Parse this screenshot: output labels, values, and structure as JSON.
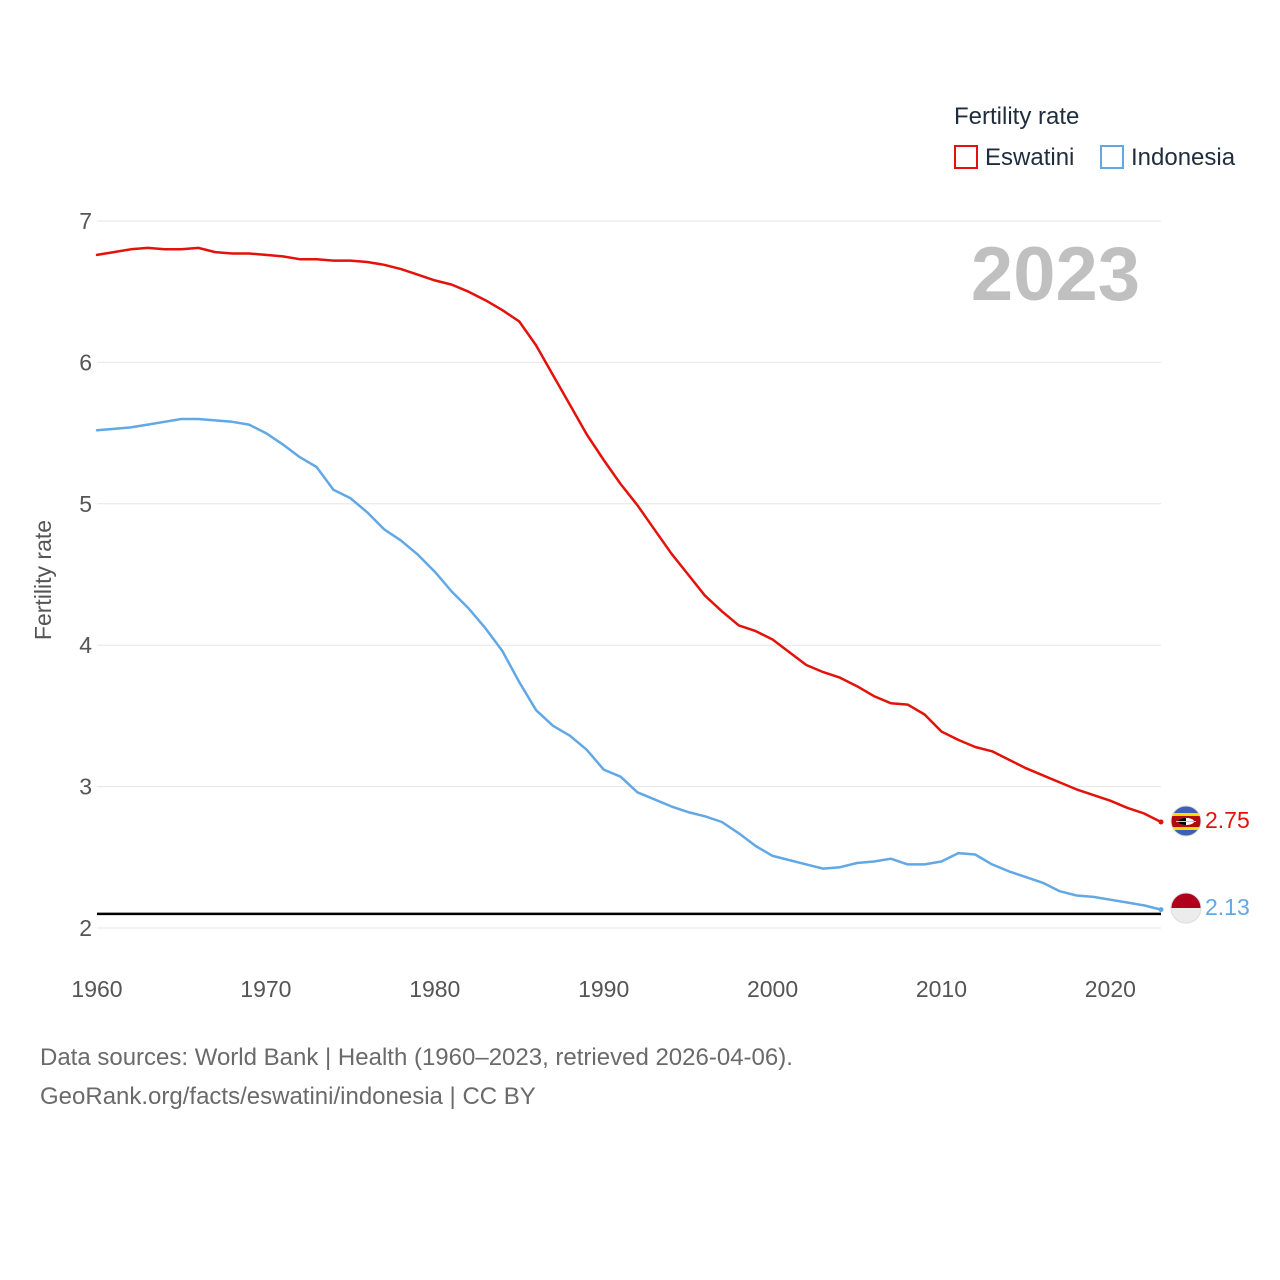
{
  "colors": {
    "eswatini": "#e3120b",
    "indonesia": "#62a8e5",
    "grid": "#e6e6e6",
    "reference_line": "#000000",
    "year_watermark": "#c0c0c0"
  },
  "year_label": "2023",
  "legend": {
    "title": "Fertility rate",
    "items": [
      {
        "label": "Eswatini"
      },
      {
        "label": "Indonesia"
      }
    ]
  },
  "end_labels": {
    "eswatini": "2.75",
    "indonesia": "2.13"
  },
  "footer": {
    "source": "Data sources: World Bank | Health (1960–2023, retrieved 2026-04-06).",
    "credit": "GeoRank.org/facts/eswatini/indonesia | CC BY"
  },
  "chart_data": {
    "type": "line",
    "title": "Fertility rate",
    "xlabel": "",
    "ylabel": "Fertility rate",
    "xlim": [
      1960,
      2023
    ],
    "ylim": [
      2,
      7
    ],
    "grid": true,
    "legend_position": "top-right",
    "xticks": [
      "1960",
      "1970",
      "1980",
      "1990",
      "2000",
      "2010",
      "2020"
    ],
    "yticks": [
      "2",
      "3",
      "4",
      "5",
      "6",
      "7"
    ],
    "reference_line": {
      "y": 2.1
    },
    "x": [
      1960,
      1961,
      1962,
      1963,
      1964,
      1965,
      1966,
      1967,
      1968,
      1969,
      1970,
      1971,
      1972,
      1973,
      1974,
      1975,
      1976,
      1977,
      1978,
      1979,
      1980,
      1981,
      1982,
      1983,
      1984,
      1985,
      1986,
      1987,
      1988,
      1989,
      1990,
      1991,
      1992,
      1993,
      1994,
      1995,
      1996,
      1997,
      1998,
      1999,
      2000,
      2001,
      2002,
      2003,
      2004,
      2005,
      2006,
      2007,
      2008,
      2009,
      2010,
      2011,
      2012,
      2013,
      2014,
      2015,
      2016,
      2017,
      2018,
      2019,
      2020,
      2021,
      2022,
      2023
    ],
    "series": [
      {
        "name": "Eswatini",
        "values": [
          6.76,
          6.78,
          6.8,
          6.81,
          6.8,
          6.8,
          6.81,
          6.78,
          6.77,
          6.77,
          6.76,
          6.75,
          6.73,
          6.73,
          6.72,
          6.72,
          6.71,
          6.69,
          6.66,
          6.62,
          6.58,
          6.55,
          6.5,
          6.44,
          6.37,
          6.29,
          6.12,
          5.91,
          5.7,
          5.49,
          5.31,
          5.14,
          4.99,
          4.82,
          4.65,
          4.5,
          4.35,
          4.24,
          4.14,
          4.1,
          4.04,
          3.95,
          3.86,
          3.81,
          3.77,
          3.71,
          3.64,
          3.59,
          3.58,
          3.51,
          3.39,
          3.33,
          3.28,
          3.25,
          3.19,
          3.13,
          3.08,
          3.03,
          2.98,
          2.94,
          2.9,
          2.85,
          2.81,
          2.75
        ]
      },
      {
        "name": "Indonesia",
        "values": [
          5.52,
          5.53,
          5.54,
          5.56,
          5.58,
          5.6,
          5.6,
          5.59,
          5.58,
          5.56,
          5.5,
          5.42,
          5.33,
          5.26,
          5.1,
          5.04,
          4.94,
          4.82,
          4.74,
          4.64,
          4.52,
          4.38,
          4.26,
          4.12,
          3.96,
          3.74,
          3.54,
          3.43,
          3.36,
          3.26,
          3.12,
          3.07,
          2.96,
          2.91,
          2.86,
          2.82,
          2.79,
          2.75,
          2.67,
          2.58,
          2.51,
          2.48,
          2.45,
          2.42,
          2.43,
          2.46,
          2.47,
          2.49,
          2.45,
          2.45,
          2.47,
          2.53,
          2.52,
          2.45,
          2.4,
          2.36,
          2.32,
          2.26,
          2.23,
          2.22,
          2.2,
          2.18,
          2.16,
          2.13
        ]
      }
    ]
  }
}
